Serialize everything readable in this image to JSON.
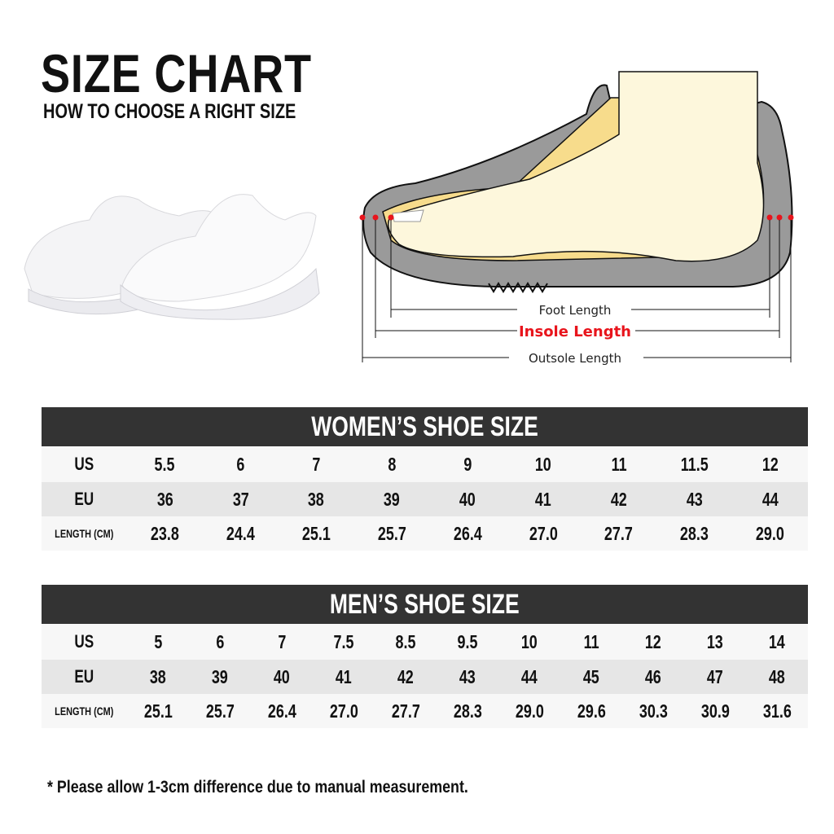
{
  "header": {
    "title": "SIZE CHART",
    "subtitle": "HOW TO CHOOSE A RIGHT SIZE"
  },
  "diagram": {
    "foot_length": "Foot Length",
    "insole_length": "Insole Length",
    "outsole_length": "Outsole Length",
    "colors": {
      "insole": "#e8141c",
      "sole": "#9a9a9a",
      "foot": "#fdf7dc",
      "lining": "#f7dc8c"
    }
  },
  "women": {
    "title": "WOMEN’S SHOE SIZE",
    "rows": [
      {
        "label": "US",
        "values": [
          "5.5",
          "6",
          "7",
          "8",
          "9",
          "10",
          "11",
          "11.5",
          "12"
        ]
      },
      {
        "label": "EU",
        "values": [
          "36",
          "37",
          "38",
          "39",
          "40",
          "41",
          "42",
          "43",
          "44"
        ]
      },
      {
        "label": "LENGTH (CM)",
        "values": [
          "23.8",
          "24.4",
          "25.1",
          "25.7",
          "26.4",
          "27.0",
          "27.7",
          "28.3",
          "29.0"
        ]
      }
    ]
  },
  "men": {
    "title": "MEN’S SHOE SIZE",
    "rows": [
      {
        "label": "US",
        "values": [
          "5",
          "6",
          "7",
          "7.5",
          "8.5",
          "9.5",
          "10",
          "11",
          "12",
          "13",
          "14"
        ]
      },
      {
        "label": "EU",
        "values": [
          "38",
          "39",
          "40",
          "41",
          "42",
          "43",
          "44",
          "45",
          "46",
          "47",
          "48"
        ]
      },
      {
        "label": "LENGTH (CM)",
        "values": [
          "25.1",
          "25.7",
          "26.4",
          "27.0",
          "27.7",
          "28.3",
          "29.0",
          "29.6",
          "30.3",
          "30.9",
          "31.6"
        ]
      }
    ]
  },
  "note": "* Please allow 1-3cm difference due to manual measurement."
}
